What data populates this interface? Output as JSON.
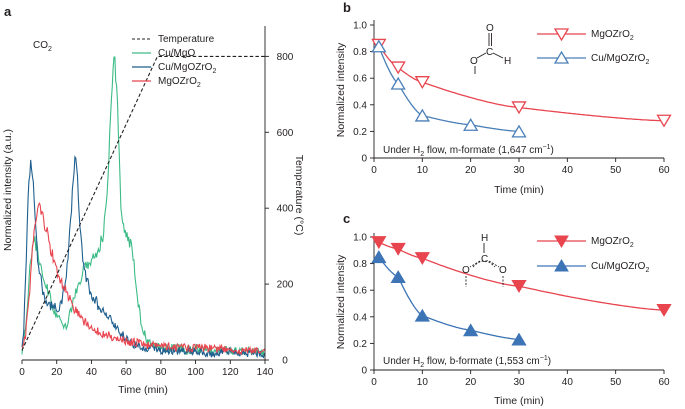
{
  "panels": [
    {
      "letter": "a"
    },
    {
      "letter": "b"
    },
    {
      "letter": "c"
    }
  ],
  "chart_data": [
    {
      "id": "a",
      "type": "line",
      "xlabel": "Time (min)",
      "ylabel": "Normalized intensity (a.u.)",
      "y2label": "Temperature (°C)",
      "annotation": "CO2",
      "xlim": [
        0,
        140
      ],
      "x_ticks": [
        0,
        20,
        40,
        60,
        80,
        100,
        120,
        140
      ],
      "ylim": [
        0,
        1.1
      ],
      "y2lim": [
        0,
        880
      ],
      "y2_ticks": [
        0,
        200,
        400,
        600,
        800
      ],
      "legend_position": "top-right",
      "series": [
        {
          "name": "Temperature",
          "axis": "right",
          "style": "dashed",
          "color": "#231f20",
          "x": [
            0,
            78,
            140
          ],
          "y": [
            25,
            800,
            800
          ]
        },
        {
          "name": "Cu/MgO",
          "axis": "left",
          "color": "#3dbb86",
          "x": [
            0,
            1,
            3,
            5,
            7,
            9,
            11,
            13,
            15,
            17,
            19,
            21,
            23,
            25,
            27,
            29,
            31,
            33,
            35,
            37,
            39,
            41,
            43,
            45,
            47,
            49,
            51,
            53,
            55,
            57,
            59,
            61,
            63,
            65,
            67,
            69,
            72,
            75,
            80,
            85,
            90,
            95,
            100,
            105,
            110,
            115,
            120,
            125,
            130,
            135,
            140
          ],
          "y": [
            0.03,
            0.05,
            0.18,
            0.34,
            0.4,
            0.36,
            0.31,
            0.27,
            0.23,
            0.19,
            0.16,
            0.14,
            0.12,
            0.11,
            0.14,
            0.18,
            0.22,
            0.26,
            0.29,
            0.31,
            0.33,
            0.34,
            0.36,
            0.38,
            0.42,
            0.55,
            0.8,
            1.02,
            0.85,
            0.5,
            0.42,
            0.4,
            0.37,
            0.3,
            0.19,
            0.11,
            0.07,
            0.05,
            0.04,
            0.04,
            0.04,
            0.03,
            0.04,
            0.03,
            0.03,
            0.04,
            0.03,
            0.03,
            0.03,
            0.03,
            0.02
          ]
        },
        {
          "name": "Cu/MgOZrO2",
          "axis": "left",
          "color": "#1f5f8e",
          "x": [
            0,
            1,
            2,
            3,
            4,
            5,
            6,
            7,
            8,
            9,
            10,
            12,
            14,
            16,
            18,
            20,
            22,
            24,
            26,
            28,
            30,
            31,
            32,
            33,
            35,
            37,
            39,
            42,
            45,
            48,
            51,
            55,
            60,
            65,
            70,
            75,
            80,
            90,
            100,
            110,
            120,
            130,
            140
          ],
          "y": [
            0.03,
            0.1,
            0.25,
            0.45,
            0.6,
            0.66,
            0.62,
            0.52,
            0.42,
            0.34,
            0.3,
            0.23,
            0.19,
            0.18,
            0.18,
            0.17,
            0.18,
            0.22,
            0.3,
            0.45,
            0.63,
            0.68,
            0.62,
            0.48,
            0.34,
            0.27,
            0.23,
            0.2,
            0.17,
            0.15,
            0.13,
            0.1,
            0.07,
            0.05,
            0.04,
            0.04,
            0.03,
            0.03,
            0.03,
            0.02,
            0.03,
            0.02,
            0.02
          ]
        },
        {
          "name": "MgOZrO2",
          "axis": "left",
          "color": "#e8454f",
          "x": [
            0,
            2,
            4,
            6,
            8,
            10,
            12,
            14,
            16,
            18,
            20,
            22,
            25,
            28,
            31,
            34,
            37,
            40,
            45,
            50,
            55,
            60,
            65,
            70,
            80,
            90,
            100,
            110,
            120,
            130,
            140
          ],
          "y": [
            0.03,
            0.08,
            0.2,
            0.36,
            0.45,
            0.5,
            0.47,
            0.43,
            0.38,
            0.34,
            0.3,
            0.27,
            0.23,
            0.19,
            0.16,
            0.14,
            0.12,
            0.11,
            0.09,
            0.08,
            0.07,
            0.06,
            0.06,
            0.05,
            0.05,
            0.04,
            0.04,
            0.04,
            0.03,
            0.03,
            0.03
          ]
        }
      ]
    },
    {
      "id": "b",
      "type": "scatter",
      "xlabel": "Time (min)",
      "ylabel": "Normalized intensity",
      "annotation": "Under H2 flow, m-formate (1,647 cm−1)",
      "xlim": [
        0,
        60
      ],
      "x_ticks": [
        0,
        10,
        20,
        30,
        40,
        50,
        60
      ],
      "ylim": [
        0,
        1.0
      ],
      "y_ticks": [
        0,
        0.2,
        0.4,
        0.6,
        0.8,
        1.0
      ],
      "legend_position": "top-right",
      "series": [
        {
          "name": "MgOZrO2",
          "color": "#e8454f",
          "marker": "open triangle down",
          "x": [
            1,
            5,
            10,
            30,
            60
          ],
          "y": [
            0.85,
            0.68,
            0.57,
            0.38,
            0.28
          ]
        },
        {
          "name": "Cu/MgOZrO2",
          "color": "#4a7fb8",
          "marker": "open triangle up",
          "x": [
            1,
            5,
            10,
            20,
            30
          ],
          "y": [
            0.84,
            0.56,
            0.32,
            0.25,
            0.2
          ]
        }
      ]
    },
    {
      "id": "c",
      "type": "scatter",
      "xlabel": "Time (min)",
      "ylabel": "Normalized intensity",
      "annotation": "Under H2 flow, b-formate (1,553 cm−1)",
      "xlim": [
        0,
        60
      ],
      "x_ticks": [
        0,
        10,
        20,
        30,
        40,
        50,
        60
      ],
      "ylim": [
        0,
        1.0
      ],
      "y_ticks": [
        0,
        0.2,
        0.4,
        0.6,
        0.8,
        1.0
      ],
      "legend_position": "top-right",
      "series": [
        {
          "name": "MgOZrO2",
          "color": "#e8454f",
          "marker": "filled triangle down",
          "x": [
            1,
            5,
            10,
            30,
            60
          ],
          "y": [
            0.96,
            0.91,
            0.84,
            0.63,
            0.45
          ]
        },
        {
          "name": "Cu/MgOZrO2",
          "color": "#3d74b6",
          "marker": "filled triangle up",
          "x": [
            1,
            5,
            10,
            20,
            30
          ],
          "y": [
            0.85,
            0.7,
            0.41,
            0.3,
            0.23
          ]
        }
      ]
    }
  ]
}
